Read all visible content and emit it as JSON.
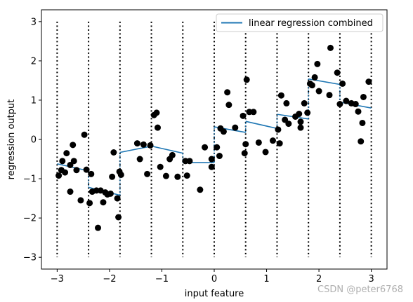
{
  "chart_data": {
    "type": "scatter",
    "xlabel": "input feature",
    "ylabel": "regression output",
    "xlim": [
      -3.3,
      3.3
    ],
    "ylim": [
      -3.3,
      3.3
    ],
    "xticks": [
      -3,
      -2,
      -1,
      0,
      1,
      2,
      3
    ],
    "yticks": [
      -3,
      -2,
      -1,
      0,
      1,
      2,
      3
    ],
    "xtick_labels": [
      "−3",
      "−2",
      "−1",
      "0",
      "1",
      "2",
      "3"
    ],
    "ytick_labels": [
      "−3",
      "−2",
      "−1",
      "0",
      "1",
      "2",
      "3"
    ],
    "grid": false,
    "legend_position": "top-right",
    "bin_edges": [
      -3.0,
      -2.4,
      -1.8,
      -1.2,
      -0.6,
      0.0,
      0.6,
      1.2,
      1.8,
      2.4,
      3.0
    ],
    "bin_edge_line_range": [
      -3.0,
      3.0
    ],
    "colors": {
      "line": "#1f77b4",
      "points": "#000000",
      "bin_edges": "#000000"
    },
    "series": [
      {
        "name": "linear regression combined",
        "kind": "line",
        "segments": [
          {
            "x": [
              -3.0,
              -2.4
            ],
            "y": [
              -0.62,
              -0.8
            ]
          },
          {
            "x": [
              -2.4,
              -1.8
            ],
            "y": [
              -1.22,
              -1.42
            ]
          },
          {
            "x": [
              -1.8,
              -1.2
            ],
            "y": [
              -0.33,
              -0.17
            ]
          },
          {
            "x": [
              -1.2,
              -0.6
            ],
            "y": [
              -0.17,
              -0.35
            ]
          },
          {
            "x": [
              -0.6,
              0.0
            ],
            "y": [
              -0.59,
              -0.59
            ]
          },
          {
            "x": [
              0.0,
              0.6
            ],
            "y": [
              0.32,
              0.18
            ]
          },
          {
            "x": [
              0.6,
              1.2
            ],
            "y": [
              0.46,
              0.28
            ]
          },
          {
            "x": [
              1.2,
              1.8
            ],
            "y": [
              0.64,
              0.52
            ]
          },
          {
            "x": [
              1.8,
              2.4
            ],
            "y": [
              1.54,
              1.4
            ]
          },
          {
            "x": [
              2.4,
              3.0
            ],
            "y": [
              0.95,
              0.8
            ]
          }
        ]
      },
      {
        "kind": "scatter",
        "points": [
          [
            -2.97,
            -0.92
          ],
          [
            -2.92,
            -0.78
          ],
          [
            -2.9,
            -0.55
          ],
          [
            -2.85,
            -0.84
          ],
          [
            -2.82,
            -0.35
          ],
          [
            -2.75,
            -1.33
          ],
          [
            -2.75,
            -0.65
          ],
          [
            -2.7,
            -0.14
          ],
          [
            -2.68,
            -0.55
          ],
          [
            -2.63,
            -0.78
          ],
          [
            -2.55,
            -1.55
          ],
          [
            -2.48,
            0.12
          ],
          [
            -2.44,
            -0.77
          ],
          [
            -2.38,
            -1.62
          ],
          [
            -2.35,
            -0.88
          ],
          [
            -2.33,
            -1.33
          ],
          [
            -2.25,
            -1.3
          ],
          [
            -2.22,
            -2.25
          ],
          [
            -2.17,
            -1.3
          ],
          [
            -2.12,
            -1.6
          ],
          [
            -2.08,
            -1.35
          ],
          [
            -2.04,
            -1.4
          ],
          [
            -1.98,
            -1.38
          ],
          [
            -1.95,
            -0.95
          ],
          [
            -1.92,
            -0.33
          ],
          [
            -1.85,
            -1.5
          ],
          [
            -1.83,
            -1.98
          ],
          [
            -1.81,
            -0.82
          ],
          [
            -1.78,
            -0.9
          ],
          [
            -1.47,
            -0.1
          ],
          [
            -1.42,
            -0.5
          ],
          [
            -1.35,
            -0.13
          ],
          [
            -1.28,
            -0.88
          ],
          [
            -1.22,
            -0.15
          ],
          [
            -1.15,
            0.62
          ],
          [
            -1.1,
            0.68
          ],
          [
            -1.08,
            0.3
          ],
          [
            -1.03,
            -0.7
          ],
          [
            -0.92,
            -0.93
          ],
          [
            -0.85,
            -0.5
          ],
          [
            -0.8,
            -0.4
          ],
          [
            -0.7,
            -0.95
          ],
          [
            -0.55,
            -0.55
          ],
          [
            -0.52,
            -0.92
          ],
          [
            -0.47,
            -0.55
          ],
          [
            -0.27,
            -1.28
          ],
          [
            -0.18,
            -0.2
          ],
          [
            -0.05,
            -0.5
          ],
          [
            -0.05,
            -0.7
          ],
          [
            0.05,
            -0.2
          ],
          [
            0.1,
            -0.42
          ],
          [
            0.12,
            0.28
          ],
          [
            0.18,
            0.2
          ],
          [
            0.25,
            1.2
          ],
          [
            0.28,
            0.88
          ],
          [
            0.4,
            0.3
          ],
          [
            0.55,
            0.6
          ],
          [
            0.58,
            -0.35
          ],
          [
            0.6,
            -0.12
          ],
          [
            0.62,
            1.52
          ],
          [
            0.67,
            0.7
          ],
          [
            0.75,
            0.7
          ],
          [
            0.85,
            -0.08
          ],
          [
            0.98,
            -0.32
          ],
          [
            1.12,
            -0.03
          ],
          [
            1.22,
            0.25
          ],
          [
            1.25,
            -0.1
          ],
          [
            1.28,
            1.12
          ],
          [
            1.35,
            0.5
          ],
          [
            1.38,
            0.92
          ],
          [
            1.42,
            0.4
          ],
          [
            1.55,
            0.58
          ],
          [
            1.62,
            0.65
          ],
          [
            1.65,
            0.45
          ],
          [
            1.65,
            0.3
          ],
          [
            1.72,
            0.92
          ],
          [
            1.78,
            0.68
          ],
          [
            1.83,
            1.42
          ],
          [
            1.87,
            1.38
          ],
          [
            1.92,
            1.58
          ],
          [
            1.97,
            1.92
          ],
          [
            2.0,
            1.23
          ],
          [
            2.2,
            1.13
          ],
          [
            2.22,
            2.33
          ],
          [
            2.35,
            1.7
          ],
          [
            2.4,
            0.9
          ],
          [
            2.45,
            1.42
          ],
          [
            2.52,
            0.98
          ],
          [
            2.62,
            0.92
          ],
          [
            2.7,
            0.9
          ],
          [
            2.75,
            0.71
          ],
          [
            2.8,
            -0.05
          ],
          [
            2.83,
            0.42
          ],
          [
            2.85,
            1.08
          ],
          [
            2.95,
            1.47
          ]
        ]
      }
    ]
  },
  "watermark": "CSDN @peter6768"
}
